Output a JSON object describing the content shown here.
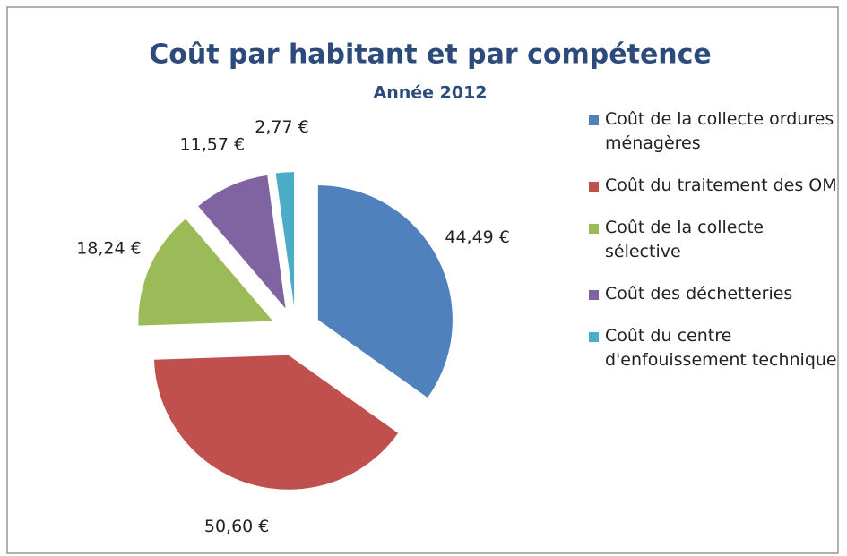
{
  "chart_data": {
    "type": "pie",
    "title": "Coût par habitant et par compétence",
    "subtitle": "Année 2012",
    "categories": [
      "Coût de la collecte ordures ménagères",
      "Coût du traitement des OM",
      "Coût de la collecte sélective",
      "Coût des déchetteries",
      "Coût du centre d'enfouissement technique"
    ],
    "values": [
      44.49,
      50.6,
      18.24,
      11.57,
      2.77
    ],
    "value_labels": [
      "44,49 €",
      "50,60 €",
      "18,24 €",
      "11,57 €",
      "2,77 €"
    ],
    "colors": [
      "#4f81bd",
      "#c0504d",
      "#9bbb59",
      "#8064a2",
      "#4bacc6"
    ],
    "legend": "right"
  }
}
